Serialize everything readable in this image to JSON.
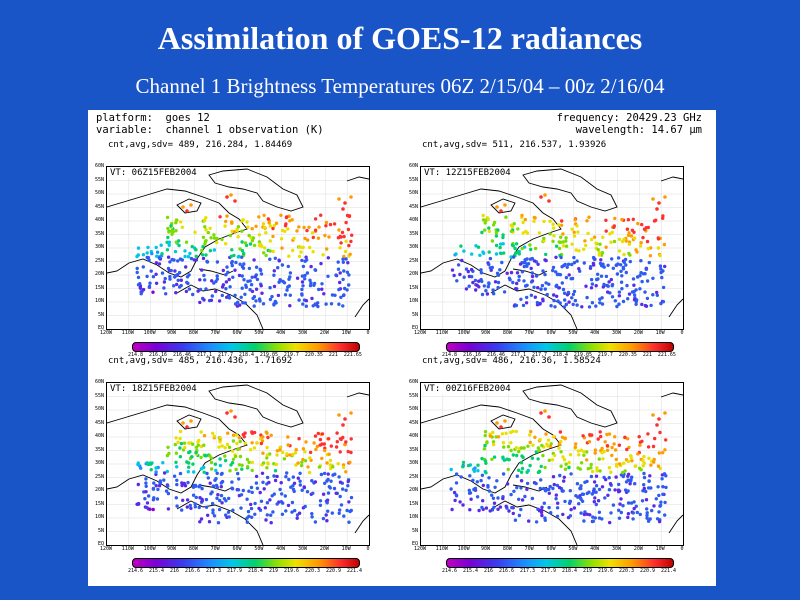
{
  "slide": {
    "title": "Assimilation of GOES-12 radiances",
    "subtitle": "Channel 1 Brightness Temperatures 06Z 2/15/04 – 00z 2/16/04"
  },
  "figure": {
    "platform_line": "platform:  goes 12",
    "variable_line": "variable:  channel 1 observation (K)",
    "frequency_line": "frequency: 20429.23 GHz",
    "wavelength_line": "wavelength: 14.67 µm",
    "y_ticks": [
      "60N",
      "55N",
      "50N",
      "45N",
      "40N",
      "35N",
      "30N",
      "25N",
      "20N",
      "15N",
      "10N",
      "5N",
      "EQ"
    ],
    "x_ticks": [
      "120W",
      "110W",
      "100W",
      "90W",
      "80W",
      "70W",
      "60W",
      "50W",
      "40W",
      "30W",
      "20W",
      "10W",
      "0"
    ],
    "panels": [
      {
        "stats": "cnt,avg,sdv= 489, 216.284, 1.84469",
        "vt": "VT: 06Z15FEB2004",
        "colorbar_labels": [
          "214.8",
          "216.16",
          "216.46",
          "217.1",
          "217.7",
          "218.4",
          "219.05",
          "219.7",
          "220.35",
          "221",
          "221.65"
        ]
      },
      {
        "stats": "cnt,avg,sdv= 511, 216.537, 1.93926",
        "vt": "VT: 12Z15FEB2004",
        "colorbar_labels": [
          "214.8",
          "216.16",
          "216.46",
          "217.1",
          "217.7",
          "218.4",
          "219.05",
          "219.7",
          "220.35",
          "221",
          "221.65"
        ]
      },
      {
        "stats": "cnt,avg,sdv= 485, 216.436, 1.71692",
        "vt": "VT: 18Z15FEB2004",
        "colorbar_labels": [
          "214.6",
          "215.4",
          "216",
          "216.6",
          "217.3",
          "217.9",
          "218.4",
          "219",
          "219.6",
          "220.3",
          "220.9",
          "221.4"
        ]
      },
      {
        "stats": "cnt,avg,sdv= 486, 216.36, 1.58524",
        "vt": "VT: 00Z16FEB2004",
        "colorbar_labels": [
          "214.6",
          "215.4",
          "216",
          "216.6",
          "217.3",
          "217.9",
          "218.4",
          "219",
          "219.6",
          "220.3",
          "220.9",
          "221.4"
        ]
      }
    ]
  }
}
